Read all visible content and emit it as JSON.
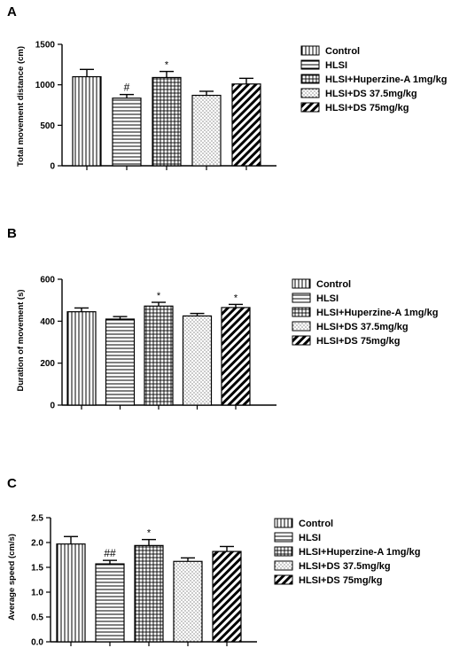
{
  "chart_data": [
    {
      "panel_label": "A",
      "type": "bar",
      "ylabel": "Total movement distance (cm)",
      "ylim": [
        0,
        1500
      ],
      "yticks": [
        "0",
        "500",
        "1000",
        "1500"
      ],
      "categories": [
        "Control",
        "HLSI",
        "HLSI+Huperzine-A 1mg/kg",
        "HLSI+DS 37.5mg/kg",
        "HLSI+DS 75mg/kg"
      ],
      "values": [
        1100,
        835,
        1090,
        870,
        1010
      ],
      "errors": [
        90,
        45,
        75,
        50,
        70
      ],
      "annotations": [
        "",
        "#",
        "*",
        "",
        ""
      ],
      "patterns": [
        "vertical",
        "horizontal",
        "grid",
        "dots",
        "diagonal"
      ]
    },
    {
      "panel_label": "B",
      "type": "bar",
      "ylabel": "Duration of movement (s)",
      "ylim": [
        0,
        600
      ],
      "yticks": [
        "0",
        "200",
        "400",
        "600"
      ],
      "categories": [
        "Control",
        "HLSI",
        "HLSI+Huperzine-A 1mg/kg",
        "HLSI+DS 37.5mg/kg",
        "HLSI+DS 75mg/kg"
      ],
      "values": [
        445,
        410,
        472,
        425,
        465
      ],
      "errors": [
        18,
        12,
        18,
        12,
        15
      ],
      "annotations": [
        "",
        "",
        "*",
        "",
        "*"
      ],
      "patterns": [
        "vertical",
        "horizontal",
        "grid",
        "dots",
        "diagonal"
      ]
    },
    {
      "panel_label": "C",
      "type": "bar",
      "ylabel": "Average speed (cm/s)",
      "ylim": [
        0,
        2.5
      ],
      "yticks": [
        "0.0",
        "0.5",
        "1.0",
        "1.5",
        "2.0",
        "2.5"
      ],
      "categories": [
        "Control",
        "HLSI",
        "HLSI+Huperzine-A 1mg/kg",
        "HLSI+DS 37.5mg/kg",
        "HLSI+DS 75mg/kg"
      ],
      "values": [
        1.97,
        1.57,
        1.94,
        1.62,
        1.82
      ],
      "errors": [
        0.15,
        0.07,
        0.12,
        0.07,
        0.1
      ],
      "annotations": [
        "",
        "##",
        "*",
        "",
        ""
      ],
      "patterns": [
        "vertical",
        "horizontal",
        "grid",
        "dots",
        "diagonal"
      ]
    }
  ]
}
